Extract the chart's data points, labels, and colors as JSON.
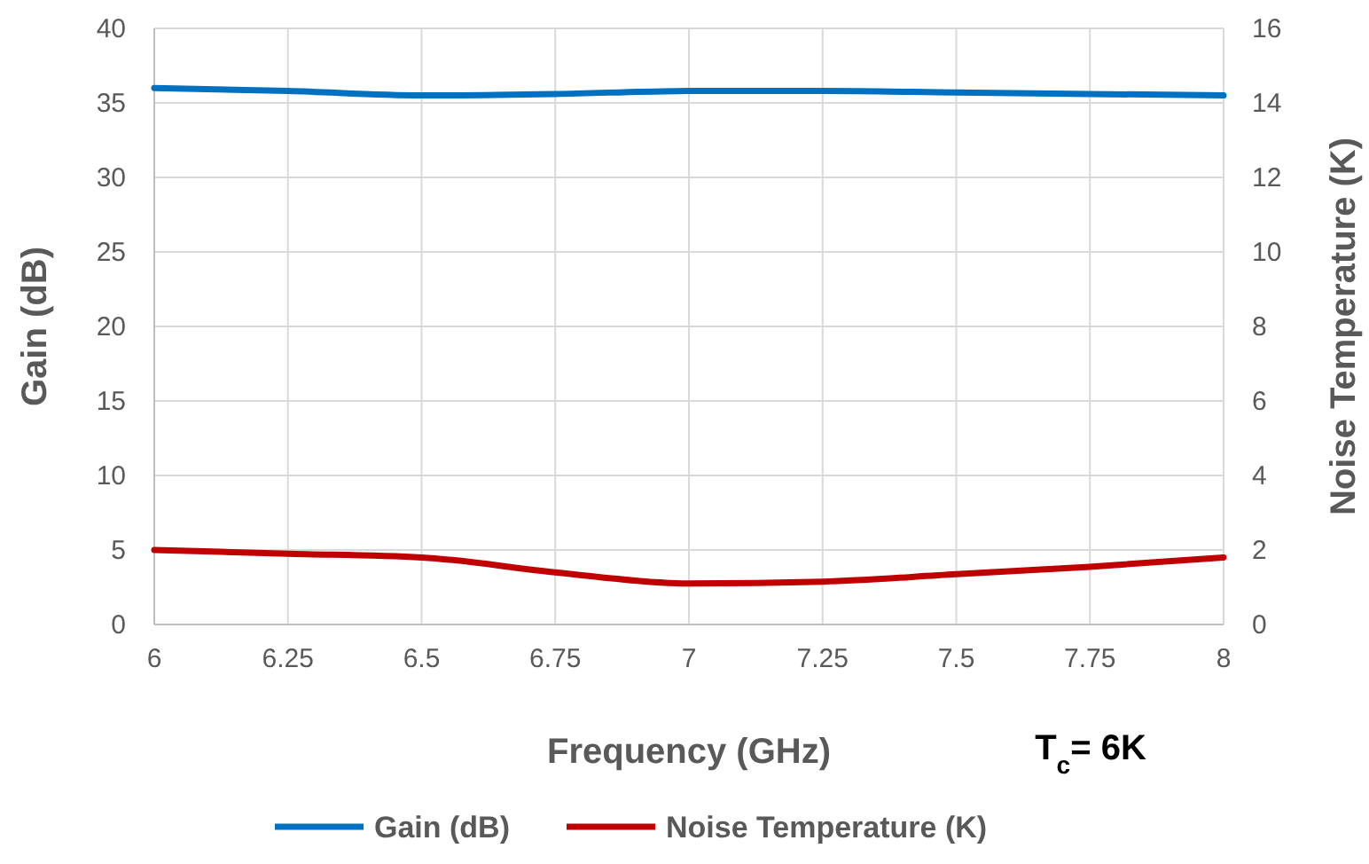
{
  "chart_data": {
    "type": "line",
    "xlabel": "Frequency (GHz)",
    "ylabel": "Gain (dB)",
    "y2label": "Noise Temperature (K)",
    "x": [
      6,
      6.25,
      6.5,
      6.75,
      7,
      7.25,
      7.5,
      7.75,
      8
    ],
    "series": [
      {
        "name": "Gain (dB)",
        "color": "#0070c0",
        "values": [
          36.0,
          35.8,
          35.5,
          35.6,
          35.8,
          35.8,
          35.7,
          35.6,
          35.5
        ]
      },
      {
        "name": "Noise Temperature (K)",
        "color": "#c00000",
        "axis": "y2",
        "values": [
          2.0,
          1.9,
          1.8,
          1.4,
          1.1,
          1.15,
          1.35,
          1.55,
          1.8
        ]
      }
    ],
    "xlim": [
      6,
      8
    ],
    "xticks": [
      6,
      6.25,
      6.5,
      6.75,
      7,
      7.25,
      7.5,
      7.75,
      8
    ],
    "ylim": [
      0,
      40
    ],
    "yticks": [
      0,
      5,
      10,
      15,
      20,
      25,
      30,
      35,
      40
    ],
    "y2lim": [
      0,
      16
    ],
    "y2ticks": [
      0,
      2,
      4,
      6,
      8,
      10,
      12,
      14,
      16
    ],
    "grid": true,
    "legend": "bottom",
    "marker": "none",
    "line_style": "solid",
    "annotations": [
      "T$_{c}$= 6K"
    ]
  }
}
